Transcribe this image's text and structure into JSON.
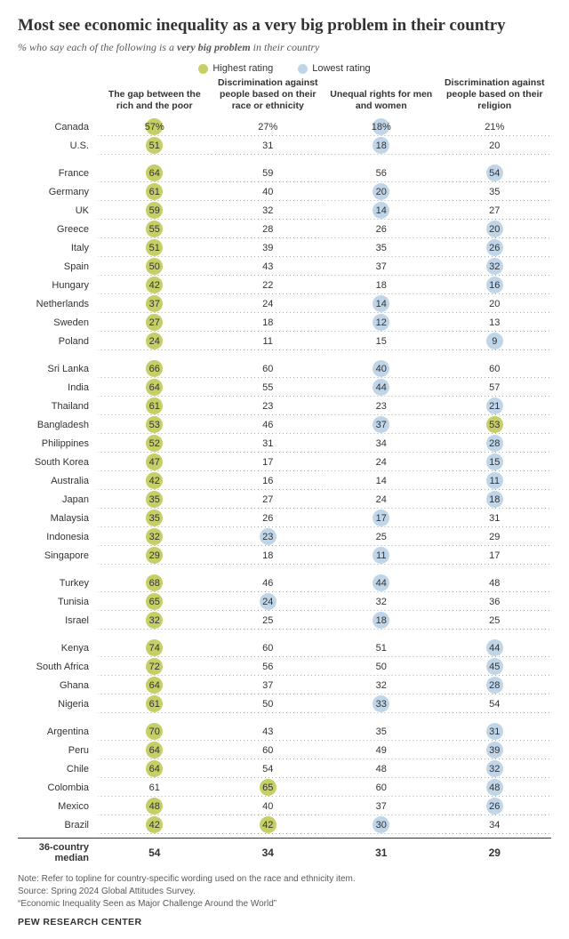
{
  "title": "Most see economic inequality as a very big problem in their country",
  "subtitle_prefix": "% who say each of the following is a ",
  "subtitle_bold": "very big problem",
  "subtitle_suffix": " in their country",
  "legend": {
    "highest": "Highest rating",
    "lowest": "Lowest rating"
  },
  "colors": {
    "highest": "#c6cf66",
    "lowest": "#c0d6e8",
    "text": "#333333",
    "bg": "#ffffff"
  },
  "columns": [
    "The gap between the rich and the poor",
    "Discrimination against people based on their race or ethnicity",
    "Unequal rights for men and women",
    "Discrimination against people based on their religion"
  ],
  "groups": [
    {
      "rows": [
        {
          "country": "Canada",
          "v": [
            "57%",
            "27%",
            "18%",
            "21%"
          ],
          "hi": [
            0
          ],
          "lo": [
            2
          ]
        },
        {
          "country": "U.S.",
          "v": [
            "51",
            "31",
            "18",
            "20"
          ],
          "hi": [
            0
          ],
          "lo": [
            2
          ]
        }
      ]
    },
    {
      "rows": [
        {
          "country": "France",
          "v": [
            "64",
            "59",
            "56",
            "54"
          ],
          "hi": [
            0
          ],
          "lo": [
            3
          ]
        },
        {
          "country": "Germany",
          "v": [
            "61",
            "40",
            "20",
            "35"
          ],
          "hi": [
            0
          ],
          "lo": [
            2
          ]
        },
        {
          "country": "UK",
          "v": [
            "59",
            "32",
            "14",
            "27"
          ],
          "hi": [
            0
          ],
          "lo": [
            2
          ]
        },
        {
          "country": "Greece",
          "v": [
            "55",
            "28",
            "26",
            "20"
          ],
          "hi": [
            0
          ],
          "lo": [
            3
          ]
        },
        {
          "country": "Italy",
          "v": [
            "51",
            "39",
            "35",
            "26"
          ],
          "hi": [
            0
          ],
          "lo": [
            3
          ]
        },
        {
          "country": "Spain",
          "v": [
            "50",
            "43",
            "37",
            "32"
          ],
          "hi": [
            0
          ],
          "lo": [
            3
          ]
        },
        {
          "country": "Hungary",
          "v": [
            "42",
            "22",
            "18",
            "16"
          ],
          "hi": [
            0
          ],
          "lo": [
            3
          ]
        },
        {
          "country": "Netherlands",
          "v": [
            "37",
            "24",
            "14",
            "20"
          ],
          "hi": [
            0
          ],
          "lo": [
            2
          ]
        },
        {
          "country": "Sweden",
          "v": [
            "27",
            "18",
            "12",
            "13"
          ],
          "hi": [
            0
          ],
          "lo": [
            2
          ]
        },
        {
          "country": "Poland",
          "v": [
            "24",
            "11",
            "15",
            "9"
          ],
          "hi": [
            0
          ],
          "lo": [
            3
          ]
        }
      ]
    },
    {
      "rows": [
        {
          "country": "Sri Lanka",
          "v": [
            "66",
            "60",
            "40",
            "60"
          ],
          "hi": [
            0
          ],
          "lo": [
            2
          ]
        },
        {
          "country": "India",
          "v": [
            "64",
            "55",
            "44",
            "57"
          ],
          "hi": [
            0
          ],
          "lo": [
            2
          ]
        },
        {
          "country": "Thailand",
          "v": [
            "61",
            "23",
            "23",
            "21"
          ],
          "hi": [
            0
          ],
          "lo": [
            3
          ]
        },
        {
          "country": "Bangladesh",
          "v": [
            "53",
            "46",
            "37",
            "53"
          ],
          "hi": [
            0,
            3
          ],
          "lo": [
            2
          ]
        },
        {
          "country": "Philippines",
          "v": [
            "52",
            "31",
            "34",
            "28"
          ],
          "hi": [
            0
          ],
          "lo": [
            3
          ]
        },
        {
          "country": "South Korea",
          "v": [
            "47",
            "17",
            "24",
            "15"
          ],
          "hi": [
            0
          ],
          "lo": [
            3
          ]
        },
        {
          "country": "Australia",
          "v": [
            "42",
            "16",
            "14",
            "11"
          ],
          "hi": [
            0
          ],
          "lo": [
            3
          ]
        },
        {
          "country": "Japan",
          "v": [
            "35",
            "27",
            "24",
            "18"
          ],
          "hi": [
            0
          ],
          "lo": [
            3
          ]
        },
        {
          "country": "Malaysia",
          "v": [
            "35",
            "26",
            "17",
            "31"
          ],
          "hi": [
            0
          ],
          "lo": [
            2
          ]
        },
        {
          "country": "Indonesia",
          "v": [
            "32",
            "23",
            "25",
            "29"
          ],
          "hi": [
            0
          ],
          "lo": [
            1
          ]
        },
        {
          "country": "Singapore",
          "v": [
            "29",
            "18",
            "11",
            "17"
          ],
          "hi": [
            0
          ],
          "lo": [
            2
          ]
        }
      ]
    },
    {
      "rows": [
        {
          "country": "Turkey",
          "v": [
            "68",
            "46",
            "44",
            "48"
          ],
          "hi": [
            0
          ],
          "lo": [
            2
          ]
        },
        {
          "country": "Tunisia",
          "v": [
            "65",
            "24",
            "32",
            "36"
          ],
          "hi": [
            0
          ],
          "lo": [
            1
          ]
        },
        {
          "country": "Israel",
          "v": [
            "32",
            "25",
            "18",
            "25"
          ],
          "hi": [
            0
          ],
          "lo": [
            2
          ]
        }
      ]
    },
    {
      "rows": [
        {
          "country": "Kenya",
          "v": [
            "74",
            "60",
            "51",
            "44"
          ],
          "hi": [
            0
          ],
          "lo": [
            3
          ]
        },
        {
          "country": "South Africa",
          "v": [
            "72",
            "56",
            "50",
            "45"
          ],
          "hi": [
            0
          ],
          "lo": [
            3
          ]
        },
        {
          "country": "Ghana",
          "v": [
            "64",
            "37",
            "32",
            "28"
          ],
          "hi": [
            0
          ],
          "lo": [
            3
          ]
        },
        {
          "country": "Nigeria",
          "v": [
            "61",
            "50",
            "33",
            "54"
          ],
          "hi": [
            0
          ],
          "lo": [
            2
          ]
        }
      ]
    },
    {
      "rows": [
        {
          "country": "Argentina",
          "v": [
            "70",
            "43",
            "35",
            "31"
          ],
          "hi": [
            0
          ],
          "lo": [
            3
          ]
        },
        {
          "country": "Peru",
          "v": [
            "64",
            "60",
            "49",
            "39"
          ],
          "hi": [
            0
          ],
          "lo": [
            3
          ]
        },
        {
          "country": "Chile",
          "v": [
            "64",
            "54",
            "48",
            "32"
          ],
          "hi": [
            0
          ],
          "lo": [
            3
          ]
        },
        {
          "country": "Colombia",
          "v": [
            "61",
            "65",
            "60",
            "48"
          ],
          "hi": [
            1
          ],
          "lo": [
            3
          ]
        },
        {
          "country": "Mexico",
          "v": [
            "48",
            "40",
            "37",
            "26"
          ],
          "hi": [
            0
          ],
          "lo": [
            3
          ]
        },
        {
          "country": "Brazil",
          "v": [
            "42",
            "42",
            "30",
            "34"
          ],
          "hi": [
            0,
            1
          ],
          "lo": [
            2
          ]
        }
      ]
    }
  ],
  "median": {
    "label": "36-country median",
    "values": [
      "54",
      "34",
      "31",
      "29"
    ]
  },
  "footer": {
    "note": "Note: Refer to topline for country-specific wording used on the race and ethnicity item.",
    "source": "Source: Spring 2024 Global Attitudes Survey.",
    "report": "“Economic Inequality Seen as Major Challenge Around the World”",
    "org": "PEW RESEARCH CENTER"
  }
}
